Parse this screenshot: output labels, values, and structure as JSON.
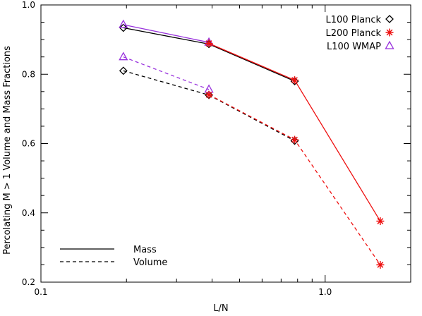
{
  "chart_data": {
    "type": "line",
    "xlabel": "L/N",
    "ylabel": "Percolating M > 1 Volume and Mass Fractions",
    "xscale": "log",
    "xlim": [
      0.1,
      2.0
    ],
    "ylim": [
      0.2,
      1.0
    ],
    "xticks": [
      {
        "value": 0.1,
        "label": "0.1"
      },
      {
        "value": 1.0,
        "label": "1.0"
      }
    ],
    "yticks": [
      {
        "value": 0.2,
        "label": "0.2"
      },
      {
        "value": 0.4,
        "label": "0.4"
      },
      {
        "value": 0.6,
        "label": "0.6"
      },
      {
        "value": 0.8,
        "label": "0.8"
      },
      {
        "value": 1.0,
        "label": "1.0"
      }
    ],
    "grid": false,
    "marker_legend_position": "top-right",
    "line_legend_position": "bottom-left",
    "marker_legend": [
      {
        "label": "L100 Planck",
        "marker": "diamond",
        "color": "#000000"
      },
      {
        "label": "L200 Planck",
        "marker": "asterisk",
        "color": "#ee1111"
      },
      {
        "label": "L100 WMAP",
        "marker": "triangle",
        "color": "#9933dd"
      }
    ],
    "line_legend": [
      {
        "label": "Mass",
        "style": "solid"
      },
      {
        "label": "Volume",
        "style": "dashed"
      }
    ],
    "series": [
      {
        "key": "l100-planck-mass",
        "color": "#000000",
        "marker": "diamond",
        "style": "solid",
        "x": [
          0.195,
          0.39,
          0.781
        ],
        "y": [
          0.934,
          0.887,
          0.78
        ]
      },
      {
        "key": "l100-planck-volume",
        "color": "#000000",
        "marker": "diamond",
        "style": "dashed",
        "x": [
          0.195,
          0.39,
          0.781
        ],
        "y": [
          0.81,
          0.74,
          0.608
        ]
      },
      {
        "key": "l100-wmap-mass",
        "color": "#9933dd",
        "marker": "triangle",
        "style": "solid",
        "x": [
          0.195,
          0.39
        ],
        "y": [
          0.943,
          0.892
        ]
      },
      {
        "key": "l100-wmap-volume",
        "color": "#9933dd",
        "marker": "triangle",
        "style": "dashed",
        "x": [
          0.195,
          0.39
        ],
        "y": [
          0.85,
          0.756
        ]
      },
      {
        "key": "l200-planck-mass",
        "color": "#ee1111",
        "marker": "asterisk",
        "style": "solid",
        "x": [
          0.39,
          0.781,
          1.563
        ],
        "y": [
          0.889,
          0.783,
          0.376
        ]
      },
      {
        "key": "l200-planck-volume",
        "color": "#ee1111",
        "marker": "asterisk",
        "style": "dashed",
        "x": [
          0.39,
          0.781,
          1.563
        ],
        "y": [
          0.741,
          0.611,
          0.25
        ]
      }
    ]
  }
}
